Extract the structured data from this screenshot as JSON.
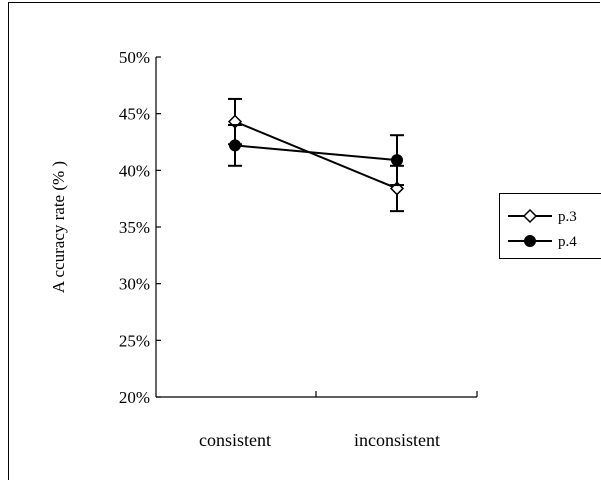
{
  "chart_data": {
    "type": "line",
    "title": "",
    "xlabel": "",
    "ylabel": "A ccuracy rate (% )",
    "categories": [
      "consistent",
      "inconsistent"
    ],
    "ylim": [
      0.2,
      0.5
    ],
    "yticks": [
      0.2,
      0.25,
      0.3,
      0.35,
      0.4,
      0.45,
      0.5
    ],
    "ytick_labels": [
      "20%",
      "25%",
      "30%",
      "35%",
      "40%",
      "45%",
      "50%"
    ],
    "grid": false,
    "legend_position": "right",
    "series": [
      {
        "name": "p.3",
        "marker": "open-diamond",
        "color": "#000000",
        "values": [
          0.443,
          0.384
        ],
        "error": [
          0.02,
          0.02
        ]
      },
      {
        "name": "p.4",
        "marker": "filled-circle",
        "color": "#000000",
        "values": [
          0.422,
          0.409
        ],
        "error": [
          0.018,
          0.022
        ]
      }
    ]
  }
}
